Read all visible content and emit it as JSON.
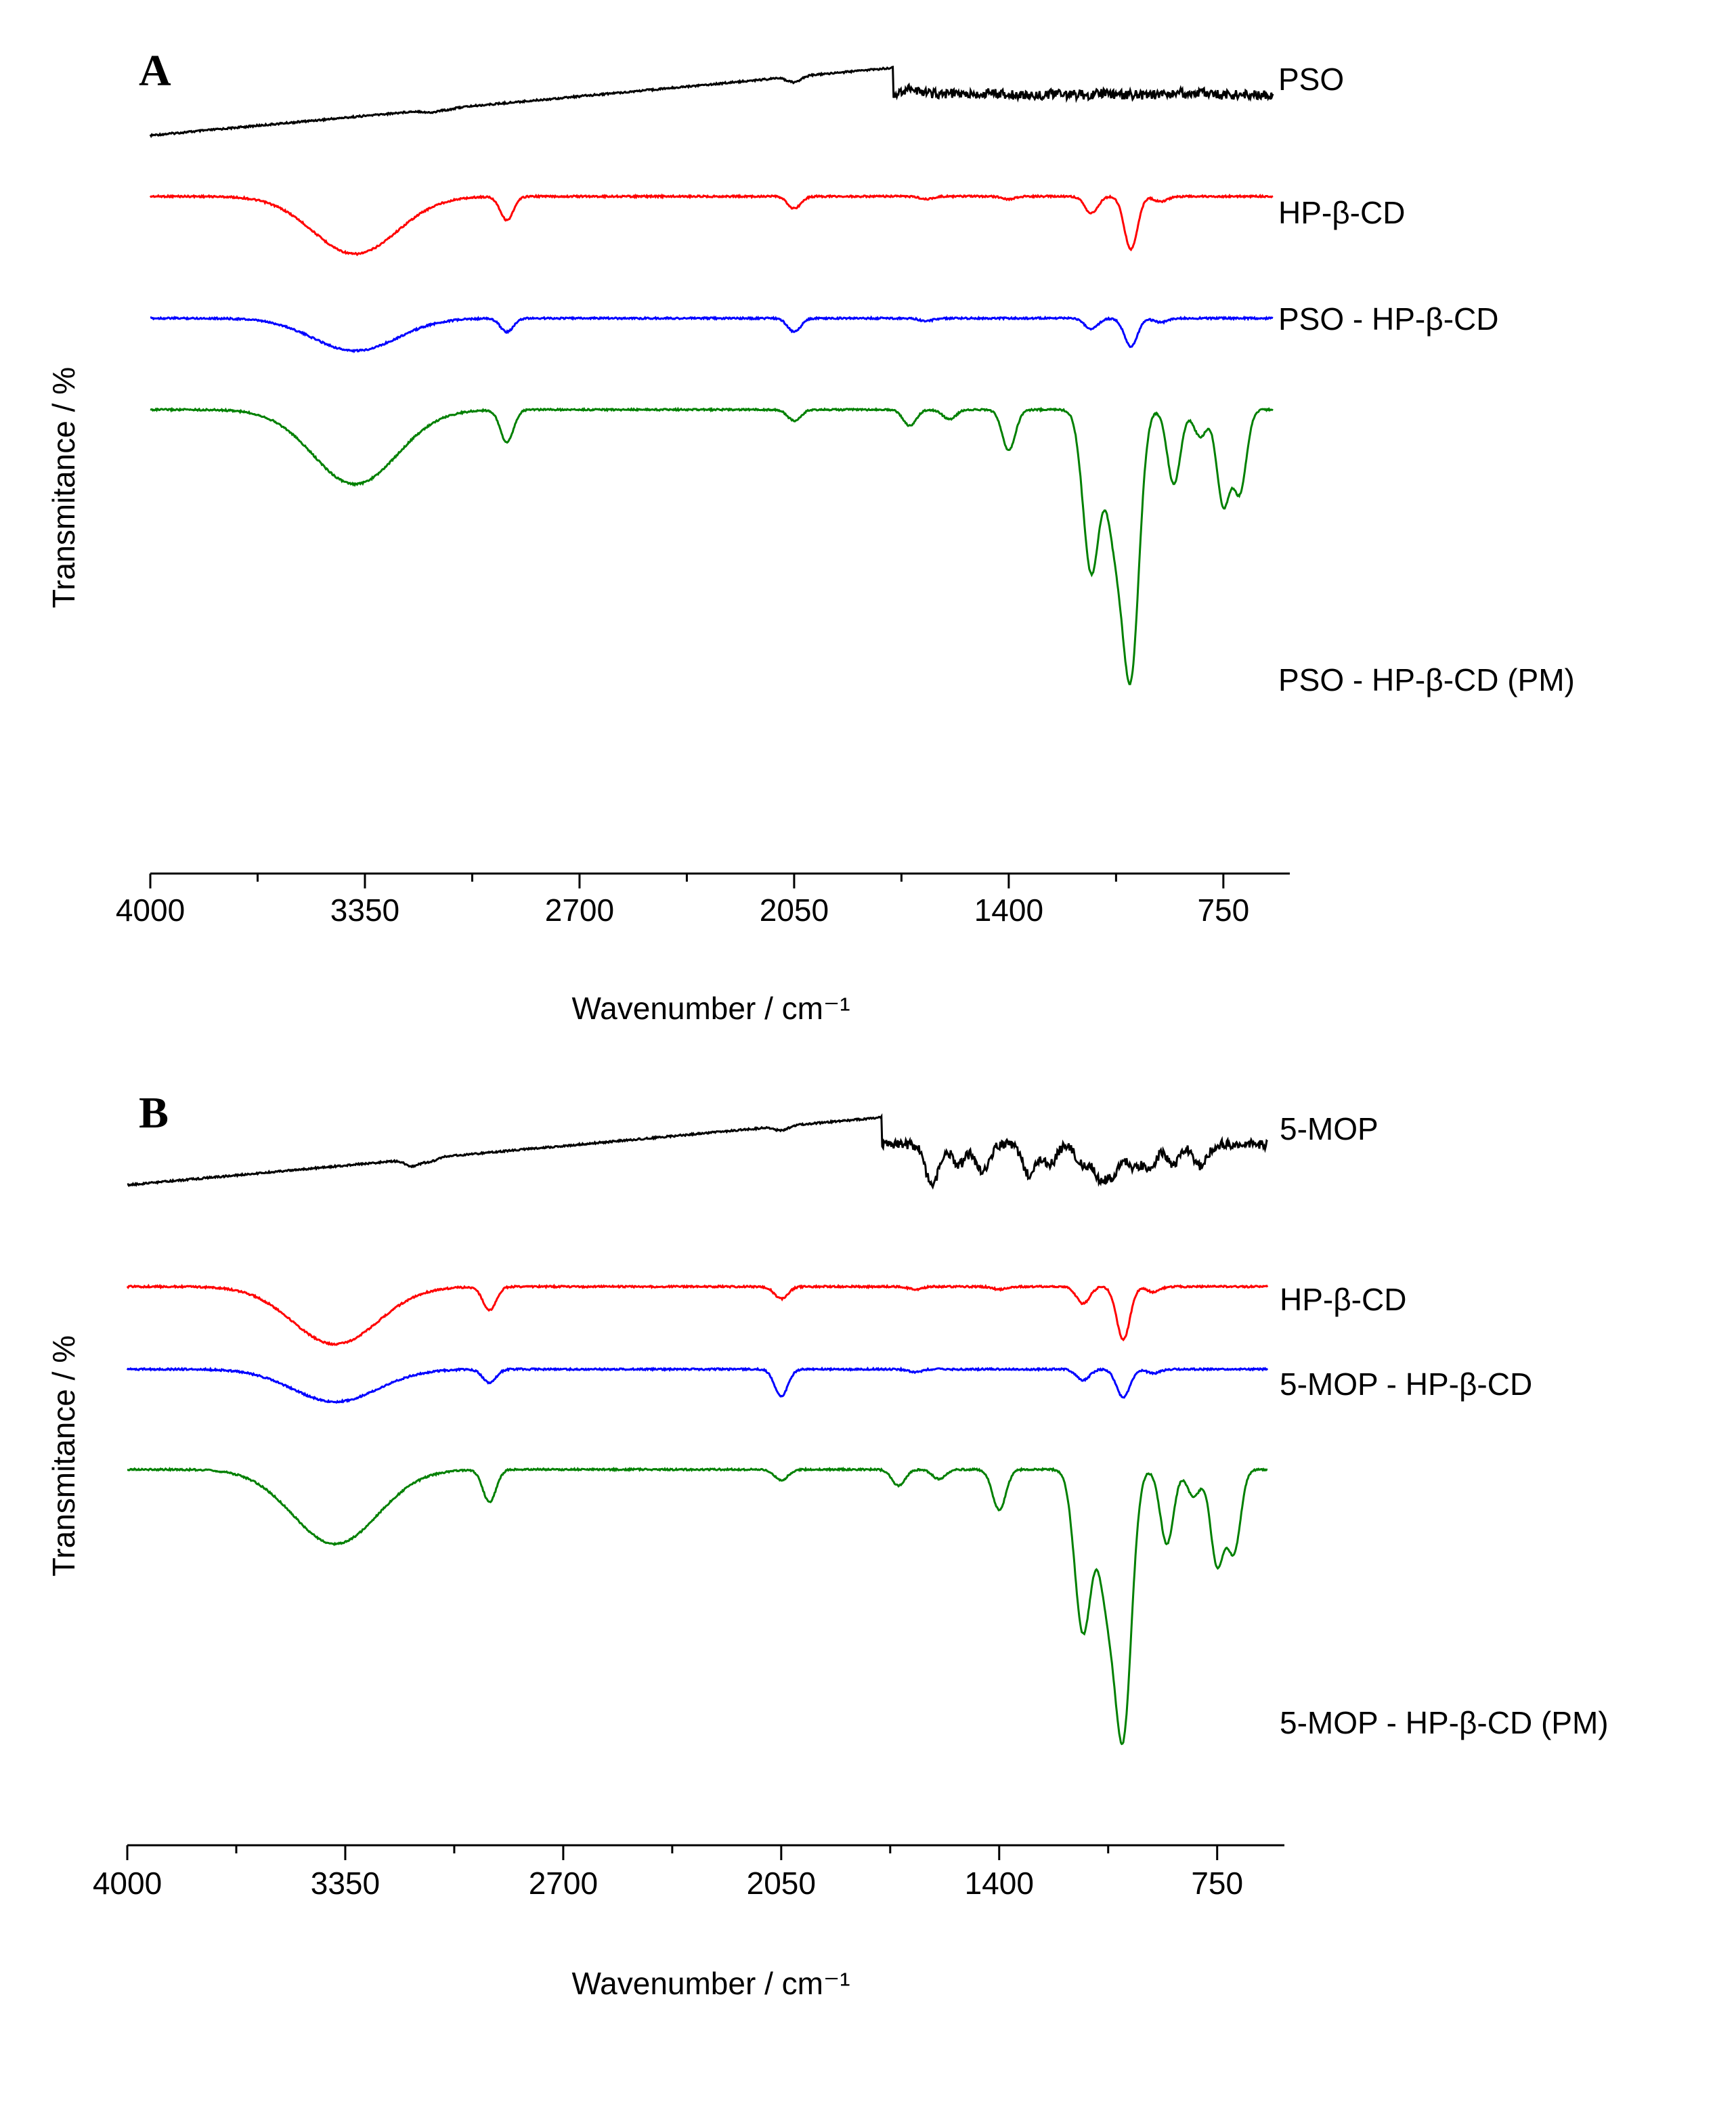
{
  "chart_data": [
    {
      "panel": "A",
      "type": "line",
      "xlabel": "Wavenumber / cm⁻¹",
      "ylabel": "Transmitance / %",
      "xlim": [
        4000,
        600
      ],
      "xticks": [
        4000,
        3350,
        2700,
        2050,
        1400,
        750
      ],
      "series": [
        {
          "name": "PSO",
          "color": "#000000",
          "features": [
            [
              3150,
              4
            ],
            [
              3100,
              2
            ],
            [
              2050,
              8
            ],
            [
              1700,
              -10
            ],
            [
              1650,
              -3
            ],
            [
              1580,
              -2
            ],
            [
              1450,
              -3
            ],
            [
              1250,
              -2
            ],
            [
              1110,
              -3
            ],
            [
              890,
              -3
            ],
            [
              820,
              -3
            ]
          ]
        },
        {
          "name": "HP-β-CD",
          "color": "#ff0000",
          "features": [
            [
              3380,
              85
            ],
            [
              2920,
              35
            ],
            [
              2050,
              18
            ],
            [
              1650,
              4
            ],
            [
              1400,
              4
            ],
            [
              1150,
              25
            ],
            [
              1030,
              78
            ],
            [
              940,
              8
            ]
          ]
        },
        {
          "name": "PSO - HP-β-CD",
          "color": "#0000ff",
          "features": [
            [
              3380,
              48
            ],
            [
              2920,
              20
            ],
            [
              2050,
              20
            ],
            [
              1650,
              4
            ],
            [
              1150,
              16
            ],
            [
              1030,
              42
            ],
            [
              940,
              6
            ]
          ]
        },
        {
          "name": "PSO - HP-β-CD (PM)",
          "color": "#008000",
          "features": [
            [
              3380,
              110
            ],
            [
              2920,
              48
            ],
            [
              2050,
              16
            ],
            [
              1700,
              24
            ],
            [
              1580,
              14
            ],
            [
              1400,
              60
            ],
            [
              1150,
              240
            ],
            [
              1080,
              170
            ],
            [
              1030,
              380
            ],
            [
              900,
              110
            ],
            [
              820,
              40
            ],
            [
              750,
              140
            ],
            [
              700,
              120
            ]
          ]
        }
      ]
    },
    {
      "panel": "B",
      "type": "line",
      "xlabel": "Wavenumber / cm⁻¹",
      "ylabel": "Transmitance / %",
      "xlim": [
        4000,
        600
      ],
      "xticks": [
        4000,
        3350,
        2700,
        2050,
        1400,
        750
      ],
      "series": [
        {
          "name": "5-MOP",
          "color": "#000000",
          "features": [
            [
              3150,
              10
            ],
            [
              3100,
              6
            ],
            [
              2050,
              6
            ],
            [
              1600,
              60
            ],
            [
              1520,
              30
            ],
            [
              1450,
              40
            ],
            [
              1310,
              45
            ],
            [
              1250,
              30
            ],
            [
              1150,
              30
            ],
            [
              1100,
              45
            ],
            [
              1060,
              40
            ],
            [
              1000,
              35
            ],
            [
              950,
              32
            ],
            [
              880,
              30
            ],
            [
              800,
              32
            ]
          ]
        },
        {
          "name": "HP-β-CD",
          "color": "#ff0000",
          "features": [
            [
              3380,
              85
            ],
            [
              2920,
              35
            ],
            [
              2050,
              18
            ],
            [
              1650,
              4
            ],
            [
              1400,
              4
            ],
            [
              1150,
              25
            ],
            [
              1030,
              78
            ],
            [
              940,
              8
            ]
          ]
        },
        {
          "name": "5-MOP - HP-β-CD",
          "color": "#0000ff",
          "features": [
            [
              3380,
              48
            ],
            [
              2920,
              20
            ],
            [
              2050,
              40
            ],
            [
              1650,
              4
            ],
            [
              1150,
              16
            ],
            [
              1030,
              42
            ],
            [
              940,
              6
            ]
          ]
        },
        {
          "name": "5-MOP - HP-β-CD (PM)",
          "color": "#008000",
          "features": [
            [
              3380,
              110
            ],
            [
              2920,
              48
            ],
            [
              2050,
              16
            ],
            [
              1700,
              24
            ],
            [
              1580,
              14
            ],
            [
              1400,
              60
            ],
            [
              1150,
              240
            ],
            [
              1080,
              170
            ],
            [
              1030,
              380
            ],
            [
              900,
              110
            ],
            [
              820,
              40
            ],
            [
              750,
              140
            ],
            [
              700,
              120
            ]
          ]
        }
      ]
    }
  ]
}
